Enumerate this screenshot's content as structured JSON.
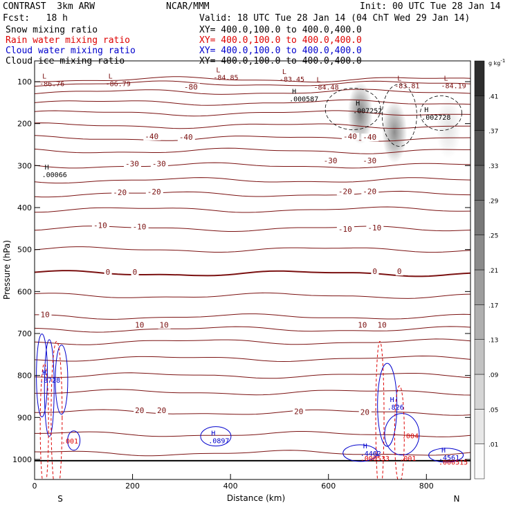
{
  "header": {
    "model": "CONTRAST  3km ARW",
    "center": "NCAR/MMM",
    "init": "Init: 00 UTC Tue 28 Jan 14",
    "fcst": "Fcst:   18 h",
    "valid": "Valid: 18 UTC Tue 28 Jan 14 (04 ChT Wed 29 Jan 14)",
    "fields": [
      {
        "name": "Snow mixing ratio",
        "xy": "XY= 400.0,100.0 to 400.0,400.0",
        "color": "#000000"
      },
      {
        "name": "Rain water mixing ratio",
        "xy": "XY= 400.0,100.0 to 400.0,400.0",
        "color": "#dd0000"
      },
      {
        "name": "Cloud water mixing ratio",
        "xy": "XY= 400.0,100.0 to 400.0,400.0",
        "color": "#0000cc"
      },
      {
        "name": "Cloud ice mixing ratio",
        "xy": "XY= 400.0,100.0 to 400.0,400.0",
        "color": "#000000"
      }
    ]
  },
  "chart_data": {
    "type": "heatmap",
    "xlabel": "Distance (km)",
    "ylabel": "Pressure (hPa)",
    "xlim": [
      0,
      890
    ],
    "ylim": [
      1045,
      60
    ],
    "x_ticks": [
      0,
      200,
      400,
      600,
      800
    ],
    "y_ticks": [
      100,
      200,
      300,
      400,
      500,
      600,
      700,
      800,
      900,
      1000
    ],
    "end_labels": {
      "left": "S",
      "right": "N"
    },
    "colorbar": {
      "unit": "g kg",
      "unit_exp": "-1",
      "levels": [
        ".01",
        ".05",
        ".09",
        ".13",
        ".17",
        ".21",
        ".25",
        ".29",
        ".33",
        ".37",
        ".41"
      ]
    },
    "isotherm_labels": [
      {
        "text": "-80",
        "x": 305,
        "p": 117
      },
      {
        "text": "-40",
        "x": 225,
        "p": 235
      },
      {
        "text": "-40",
        "x": 295,
        "p": 237
      },
      {
        "text": "-40",
        "x": 630,
        "p": 235
      },
      {
        "text": "-40",
        "x": 670,
        "p": 237
      },
      {
        "text": "-30",
        "x": 185,
        "p": 300
      },
      {
        "text": "-30",
        "x": 240,
        "p": 300
      },
      {
        "text": "-30",
        "x": 590,
        "p": 293
      },
      {
        "text": "-30",
        "x": 670,
        "p": 293
      },
      {
        "text": "-20",
        "x": 160,
        "p": 369
      },
      {
        "text": "-20",
        "x": 230,
        "p": 367
      },
      {
        "text": "-20",
        "x": 620,
        "p": 366
      },
      {
        "text": "-20",
        "x": 670,
        "p": 366
      },
      {
        "text": "-10",
        "x": 120,
        "p": 447
      },
      {
        "text": "-10",
        "x": 200,
        "p": 450
      },
      {
        "text": "-10",
        "x": 620,
        "p": 456
      },
      {
        "text": "-10",
        "x": 680,
        "p": 453
      },
      {
        "text": "0",
        "x": 145,
        "p": 558
      },
      {
        "text": "0",
        "x": 200,
        "p": 558
      },
      {
        "text": "0",
        "x": 690,
        "p": 557
      },
      {
        "text": "0",
        "x": 740,
        "p": 557
      },
      {
        "text": "10",
        "x": 12,
        "p": 660
      },
      {
        "text": "10",
        "x": 205,
        "p": 684
      },
      {
        "text": "10",
        "x": 255,
        "p": 684
      },
      {
        "text": "10",
        "x": 660,
        "p": 684
      },
      {
        "text": "10",
        "x": 700,
        "p": 684
      },
      {
        "text": "20",
        "x": 205,
        "p": 888
      },
      {
        "text": "20",
        "x": 250,
        "p": 888
      },
      {
        "text": "20",
        "x": 530,
        "p": 890
      },
      {
        "text": "20",
        "x": 665,
        "p": 892
      }
    ],
    "extrema": [
      {
        "mark": "L",
        "value": "-86.76",
        "x": 10,
        "p": 109
      },
      {
        "mark": "L",
        "value": "-86.79",
        "x": 145,
        "p": 109
      },
      {
        "mark": "L",
        "value": "-84.85",
        "x": 365,
        "p": 94
      },
      {
        "mark": "L",
        "value": "-83.45",
        "x": 500,
        "p": 98
      },
      {
        "mark": "L",
        "value": "-84.48",
        "x": 570,
        "p": 117
      },
      {
        "mark": "L",
        "value": "-83.81",
        "x": 735,
        "p": 114
      },
      {
        "mark": "L",
        "value": "-84.19",
        "x": 830,
        "p": 114
      },
      {
        "mark": "H",
        "value": ".000587",
        "x": 520,
        "p": 145
      },
      {
        "mark": "H",
        "value": ".007252",
        "x": 650,
        "p": 173
      },
      {
        "mark": "H",
        "value": ".002728",
        "x": 790,
        "p": 189
      },
      {
        "mark": "H",
        "value": ".00066",
        "x": 15,
        "p": 326
      },
      {
        "mark": "H",
        "value": ".8728",
        "x": 10,
        "p": 815
      },
      {
        "mark": "H",
        "value": ".0897",
        "x": 355,
        "p": 960
      },
      {
        "mark": "H",
        "value": ".826",
        "x": 720,
        "p": 880
      },
      {
        "mark": "H",
        "value": ".4462",
        "x": 665,
        "p": 990
      },
      {
        "mark": "H",
        "value": ".4561",
        "x": 825,
        "p": 1000
      }
    ],
    "rain_labels": [
      {
        "value": ".001",
        "x": 55,
        "p": 962
      },
      {
        "value": ".000533",
        "x": 665,
        "p": 1003
      },
      {
        "value": ".001",
        "x": 745,
        "p": 1003
      },
      {
        "value": ".004",
        "x": 750,
        "p": 950
      },
      {
        "value": ".000515",
        "x": 825,
        "p": 1012
      }
    ],
    "snow_cells": [
      {
        "x": 665,
        "p": 175,
        "intensity": 0.55
      },
      {
        "x": 735,
        "p": 220,
        "intensity": 0.5
      },
      {
        "x": 845,
        "p": 210,
        "intensity": 0.12
      }
    ]
  }
}
